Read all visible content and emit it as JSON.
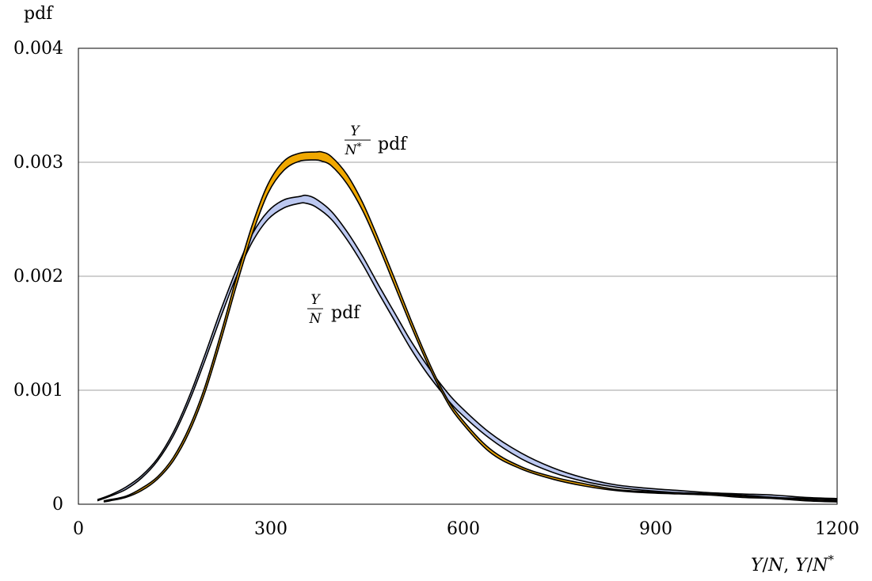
{
  "chart_data": {
    "type": "line",
    "ylabel": "pdf",
    "xlabel_parts": {
      "y1": "Y",
      "slash1": "/",
      "n1": "N",
      "comma": ",",
      "y2": "Y",
      "slash2": "/",
      "n2": "N",
      "star": "*"
    },
    "xlim": [
      0,
      1200
    ],
    "ylim": [
      0,
      0.004
    ],
    "x_ticks": [
      "0",
      "300",
      "600",
      "900",
      "1200"
    ],
    "y_ticks": [
      "0",
      "0.001",
      "0.002",
      "0.003",
      "0.004"
    ],
    "grid": "horizontal",
    "series": [
      {
        "key": "yn",
        "color": "#bcc8f0",
        "label_parts": {
          "num": "Y",
          "den": "N",
          "den_sup": "",
          "suffix": "pdf"
        },
        "x": [
          30,
          50,
          75,
          100,
          125,
          150,
          175,
          200,
          225,
          250,
          275,
          300,
          325,
          350,
          360,
          375,
          400,
          425,
          450,
          475,
          500,
          525,
          550,
          575,
          600,
          650,
          700,
          750,
          800,
          850,
          900,
          950,
          1000,
          1050,
          1100,
          1150,
          1200
        ],
        "lower": [
          3e-05,
          7e-05,
          0.00013,
          0.00023,
          0.00038,
          0.0006,
          0.0009,
          0.00126,
          0.00164,
          0.002,
          0.0023,
          0.0025,
          0.0026,
          0.00264,
          0.00264,
          0.00261,
          0.0025,
          0.00232,
          0.0021,
          0.00185,
          0.00161,
          0.00137,
          0.00116,
          0.00098,
          0.00082,
          0.00058,
          0.0004,
          0.00028,
          0.0002,
          0.00015,
          0.00012,
          0.0001,
          9e-05,
          8e-05,
          6e-05,
          5e-05,
          4e-05
        ],
        "upper": [
          4e-05,
          8e-05,
          0.00015,
          0.00025,
          0.0004,
          0.00063,
          0.00094,
          0.00131,
          0.0017,
          0.00206,
          0.00237,
          0.00257,
          0.00267,
          0.0027,
          0.00271,
          0.00268,
          0.00257,
          0.00239,
          0.00217,
          0.00192,
          0.00168,
          0.00144,
          0.00123,
          0.00104,
          0.00088,
          0.00063,
          0.00045,
          0.00032,
          0.00023,
          0.00017,
          0.00014,
          0.00012,
          0.0001,
          9e-05,
          8e-05,
          6e-05,
          5e-05
        ]
      },
      {
        "key": "ynstar",
        "color": "#f0a800",
        "label_parts": {
          "num": "Y",
          "den": "N",
          "den_sup": "*",
          "suffix": "pdf"
        },
        "x": [
          40,
          50,
          75,
          100,
          125,
          150,
          175,
          200,
          225,
          250,
          275,
          300,
          325,
          350,
          375,
          385,
          400,
          425,
          450,
          475,
          500,
          525,
          550,
          575,
          600,
          650,
          700,
          750,
          800,
          850,
          900,
          950,
          1000,
          1050,
          1100,
          1150,
          1200
        ],
        "lower": [
          2e-05,
          3e-05,
          6e-05,
          0.00012,
          0.00022,
          0.00038,
          0.00063,
          0.00098,
          0.00143,
          0.00192,
          0.00237,
          0.00273,
          0.00293,
          0.00301,
          0.00302,
          0.00301,
          0.00297,
          0.00281,
          0.00257,
          0.00226,
          0.00192,
          0.00158,
          0.00126,
          0.00098,
          0.00076,
          0.00046,
          0.00031,
          0.00022,
          0.00016,
          0.00012,
          0.0001,
          9e-05,
          8e-05,
          6e-05,
          5e-05,
          3e-05,
          2e-05
        ],
        "upper": [
          3e-05,
          4e-05,
          7e-05,
          0.00014,
          0.00024,
          0.00041,
          0.00067,
          0.00103,
          0.00149,
          0.00199,
          0.00245,
          0.00281,
          0.00301,
          0.00308,
          0.00309,
          0.00309,
          0.00305,
          0.00289,
          0.00264,
          0.00232,
          0.00198,
          0.00163,
          0.0013,
          0.00101,
          0.00079,
          0.00049,
          0.00033,
          0.00024,
          0.00018,
          0.00013,
          0.00011,
          0.0001,
          9e-05,
          7e-05,
          6e-05,
          4e-05,
          3e-05
        ]
      }
    ]
  }
}
